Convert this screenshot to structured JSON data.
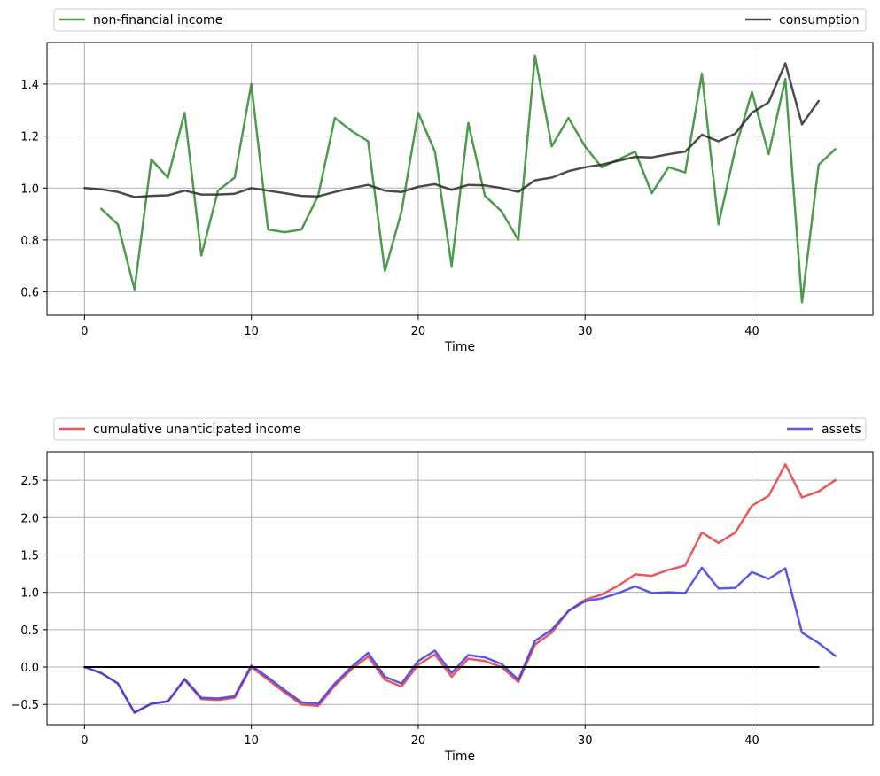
{
  "chart_data": [
    {
      "type": "line",
      "xlabel": "Time",
      "ylabel": "",
      "xlim": [
        -2.25,
        47.25
      ],
      "ylim": [
        0.51,
        1.56
      ],
      "xticks": [
        0,
        10,
        20,
        30,
        40
      ],
      "yticks": [
        0.6,
        0.8,
        1.0,
        1.2,
        1.4
      ],
      "ytick_labels": [
        "0.6",
        "0.8",
        "1.0",
        "1.2",
        "1.4"
      ],
      "grid": true,
      "legend_placement": "above",
      "series": [
        {
          "name": "non-financial income",
          "color": "#2e8b2e",
          "x": [
            1,
            2,
            3,
            4,
            5,
            6,
            7,
            8,
            9,
            10,
            11,
            12,
            13,
            14,
            15,
            16,
            17,
            18,
            19,
            20,
            21,
            22,
            23,
            24,
            25,
            26,
            27,
            28,
            29,
            30,
            31,
            32,
            33,
            34,
            35,
            36,
            37,
            38,
            39,
            40,
            41,
            42,
            43,
            44,
            45
          ],
          "values": [
            0.92,
            0.86,
            0.61,
            1.11,
            1.04,
            1.29,
            0.74,
            0.99,
            1.04,
            1.4,
            0.84,
            0.83,
            0.84,
            0.97,
            1.27,
            1.22,
            1.18,
            0.68,
            0.91,
            1.29,
            1.14,
            0.7,
            1.25,
            0.97,
            0.91,
            0.8,
            1.51,
            1.16,
            1.27,
            1.16,
            1.08,
            1.11,
            1.14,
            0.98,
            1.08,
            1.06,
            1.44,
            0.86,
            1.15,
            1.37,
            1.13,
            1.42,
            0.56,
            1.09,
            1.15
          ]
        },
        {
          "name": "consumption",
          "color": "#2b2b2b",
          "x": [
            0,
            1,
            2,
            3,
            4,
            5,
            6,
            7,
            8,
            9,
            10,
            11,
            12,
            13,
            14,
            15,
            16,
            17,
            18,
            19,
            20,
            21,
            22,
            23,
            24,
            25,
            26,
            27,
            28,
            29,
            30,
            31,
            32,
            33,
            34,
            35,
            36,
            37,
            38,
            39,
            40,
            41,
            42,
            43,
            44
          ],
          "values": [
            1.0,
            0.995,
            0.985,
            0.965,
            0.97,
            0.972,
            0.99,
            0.975,
            0.975,
            0.978,
            1.0,
            0.99,
            0.98,
            0.97,
            0.968,
            0.985,
            1.0,
            1.012,
            0.99,
            0.985,
            1.005,
            1.015,
            0.993,
            1.012,
            1.01,
            1.0,
            0.985,
            1.03,
            1.04,
            1.065,
            1.08,
            1.09,
            1.105,
            1.12,
            1.118,
            1.13,
            1.14,
            1.205,
            1.18,
            1.21,
            1.29,
            1.33,
            1.48,
            1.245,
            1.335
          ]
        }
      ]
    },
    {
      "type": "line",
      "xlabel": "Time",
      "ylabel": "",
      "xlim": [
        -2.25,
        47.25
      ],
      "ylim": [
        -0.77,
        2.88
      ],
      "xticks": [
        0,
        10,
        20,
        30,
        40
      ],
      "yticks": [
        -0.5,
        0.0,
        0.5,
        1.0,
        1.5,
        2.0,
        2.5
      ],
      "ytick_labels": [
        "−0.5",
        "0.0",
        "0.5",
        "1.0",
        "1.5",
        "2.0",
        "2.5"
      ],
      "grid": true,
      "legend_placement": "above",
      "series": [
        {
          "name": "cumulative unanticipated income",
          "color": "#e83b3b",
          "x": [
            0,
            1,
            2,
            3,
            4,
            5,
            6,
            7,
            8,
            9,
            10,
            11,
            12,
            13,
            14,
            15,
            16,
            17,
            18,
            19,
            20,
            21,
            22,
            23,
            24,
            25,
            26,
            27,
            28,
            29,
            30,
            31,
            32,
            33,
            34,
            35,
            36,
            37,
            38,
            39,
            40,
            41,
            42,
            43,
            44,
            45
          ],
          "values": [
            0.0,
            -0.08,
            -0.22,
            -0.61,
            -0.49,
            -0.46,
            -0.17,
            -0.43,
            -0.44,
            -0.41,
            0.0,
            -0.17,
            -0.34,
            -0.5,
            -0.52,
            -0.25,
            -0.03,
            0.14,
            -0.17,
            -0.26,
            0.03,
            0.17,
            -0.13,
            0.11,
            0.08,
            0.0,
            -0.2,
            0.3,
            0.46,
            0.75,
            0.9,
            0.97,
            1.09,
            1.24,
            1.22,
            1.3,
            1.36,
            1.8,
            1.66,
            1.8,
            2.16,
            2.29,
            2.71,
            2.27,
            2.35,
            2.5
          ]
        },
        {
          "name": "assets",
          "color": "#3b3be8",
          "x": [
            0,
            1,
            2,
            3,
            4,
            5,
            6,
            7,
            8,
            9,
            10,
            11,
            12,
            13,
            14,
            15,
            16,
            17,
            18,
            19,
            20,
            21,
            22,
            23,
            24,
            25,
            26,
            27,
            28,
            29,
            30,
            31,
            32,
            33,
            34,
            35,
            36,
            37,
            38,
            39,
            40,
            41,
            42,
            43,
            44,
            45
          ],
          "values": [
            0.0,
            -0.08,
            -0.22,
            -0.61,
            -0.49,
            -0.46,
            -0.16,
            -0.41,
            -0.42,
            -0.39,
            0.02,
            -0.14,
            -0.31,
            -0.47,
            -0.49,
            -0.22,
            0.0,
            0.19,
            -0.13,
            -0.22,
            0.08,
            0.22,
            -0.08,
            0.16,
            0.13,
            0.04,
            -0.17,
            0.35,
            0.5,
            0.75,
            0.88,
            0.92,
            0.99,
            1.08,
            0.99,
            1.0,
            0.99,
            1.33,
            1.05,
            1.06,
            1.27,
            1.18,
            1.32,
            0.46,
            0.32,
            0.15
          ]
        },
        {
          "name": "",
          "color": "#000000",
          "x": [
            0,
            44
          ],
          "values": [
            0.0,
            0.0
          ]
        }
      ]
    }
  ]
}
